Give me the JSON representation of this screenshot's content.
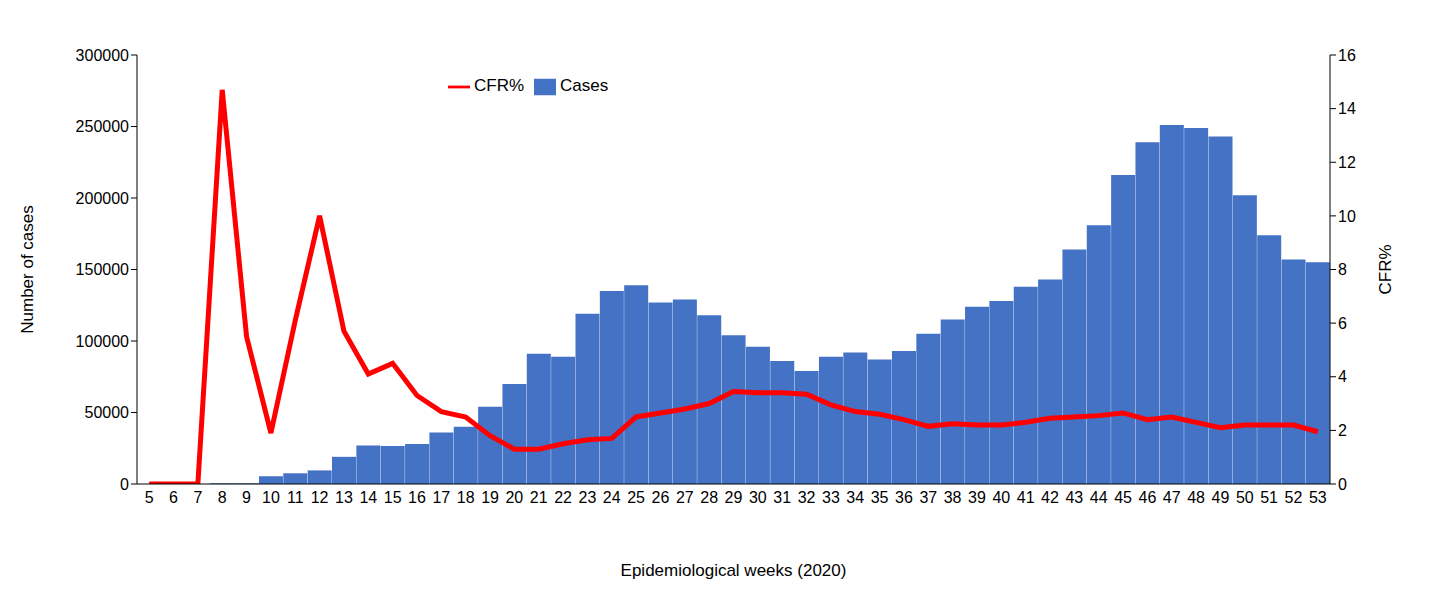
{
  "chart_data": {
    "type": "bar",
    "x_label": "Epidemiological weeks (2020)",
    "y_label": "Number of cases",
    "y2_label": "CFR%",
    "categories": [
      "5",
      "6",
      "7",
      "8",
      "9",
      "10",
      "11",
      "12",
      "13",
      "14",
      "15",
      "16",
      "17",
      "18",
      "19",
      "20",
      "21",
      "22",
      "23",
      "24",
      "25",
      "26",
      "27",
      "28",
      "29",
      "30",
      "31",
      "32",
      "33",
      "34",
      "35",
      "36",
      "37",
      "38",
      "39",
      "40",
      "41",
      "42",
      "43",
      "44",
      "45",
      "46",
      "47",
      "48",
      "49",
      "50",
      "51",
      "52",
      "53"
    ],
    "series": [
      {
        "name": "Cases",
        "type": "bar",
        "color": "#4472c4",
        "values": [
          0,
          0,
          0,
          500,
          500,
          5500,
          7500,
          9500,
          19000,
          27000,
          26500,
          28000,
          36000,
          40000,
          54000,
          70000,
          91000,
          89000,
          119000,
          135000,
          139000,
          127000,
          129000,
          118000,
          104000,
          96000,
          86000,
          79000,
          89000,
          92000,
          87000,
          93000,
          105000,
          115000,
          124000,
          128000,
          138000,
          143000,
          164000,
          181000,
          216000,
          239000,
          251000,
          249000,
          243000,
          202000,
          174000,
          157000,
          155000
        ]
      },
      {
        "name": "CFR%",
        "type": "line",
        "color": "#ff0000",
        "axis": "y2",
        "values": [
          0,
          0,
          0,
          14.7,
          5.5,
          1.9,
          6.1,
          10.0,
          5.7,
          4.1,
          4.5,
          3.3,
          2.7,
          2.5,
          1.8,
          1.3,
          1.3,
          1.5,
          1.65,
          1.7,
          2.5,
          2.65,
          2.8,
          3.0,
          3.45,
          3.4,
          3.4,
          3.35,
          2.95,
          2.7,
          2.6,
          2.4,
          2.15,
          2.25,
          2.2,
          2.2,
          2.3,
          2.45,
          2.5,
          2.55,
          2.65,
          2.4,
          2.5,
          2.3,
          2.1,
          2.2,
          2.2,
          2.2,
          1.95
        ]
      }
    ],
    "ylim": [
      0,
      300000
    ],
    "yticks": [
      0,
      50000,
      100000,
      150000,
      200000,
      250000,
      300000
    ],
    "y2lim": [
      0,
      16
    ],
    "y2ticks": [
      0,
      2,
      4,
      6,
      8,
      10,
      12,
      14,
      16
    ],
    "grid": false,
    "legend": "top"
  }
}
